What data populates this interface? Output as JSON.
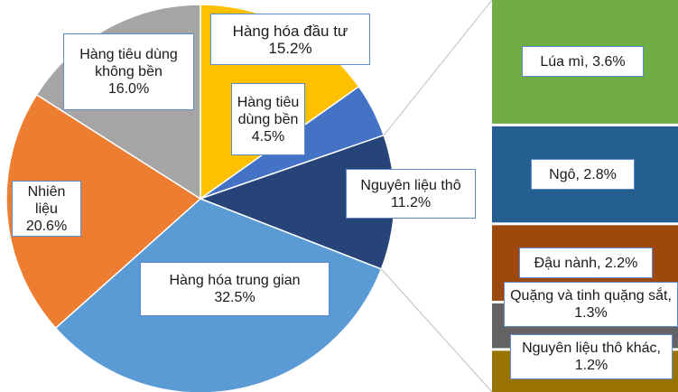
{
  "chart_data": {
    "type": "pie",
    "categories": [
      "Hàng hóa đầu tư",
      "Hàng tiêu dùng bền",
      "Nguyên liệu thô",
      "Hàng hóa trung gian",
      "Nhiên liệu",
      "Hàng tiêu dùng không bền"
    ],
    "values": [
      15.2,
      4.5,
      11.2,
      32.5,
      20.6,
      16.0
    ],
    "value_labels": [
      "15.2%",
      "4.5%",
      "11.2%",
      "32.5%",
      "20.6%",
      "16.0%"
    ],
    "colors": [
      "#FFC000",
      "#4472C4",
      "#264478",
      "#5B9BD5",
      "#ED7D31",
      "#A5A5A5"
    ],
    "breakdown": {
      "type": "bar",
      "values": [
        3.6,
        2.8,
        2.2,
        1.3,
        1.2
      ],
      "value_labels": [
        "Lúa mì, 3.6%",
        "Ngô, 2.8%",
        "Đậu nành, 2.2%",
        "Quặng và tinh quặng sắt, 1.3%",
        "Nguyên liệu thô khác, 1.2%"
      ],
      "colors": [
        "#70AD47",
        "#255E91",
        "#9E480E",
        "#636363",
        "#997300"
      ]
    }
  }
}
